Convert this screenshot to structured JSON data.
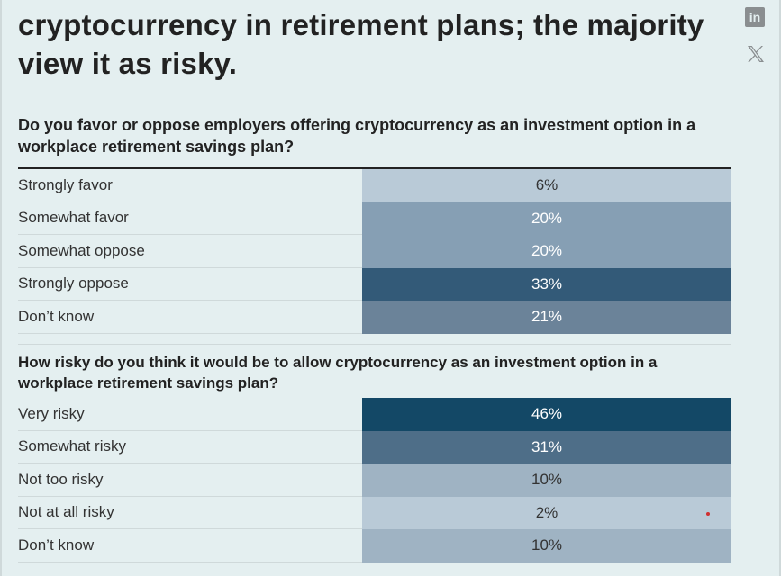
{
  "headline": "cryptocurrency in retirement plans; the majority view it as risky.",
  "share": {
    "linkedin_icon": "linkedin-icon",
    "x_icon": "x-icon"
  },
  "q1": {
    "question": "Do you favor or oppose employers offering cryptocurrency as an investment option in a workplace retirement savings plan?",
    "rows": [
      {
        "label": "Strongly favor",
        "value": "6%",
        "color": "#b9cad7"
      },
      {
        "label": "Somewhat favor",
        "value": "20%",
        "color": "#869fb4"
      },
      {
        "label": "Somewhat oppose",
        "value": "20%",
        "color": "#869fb4"
      },
      {
        "label": "Strongly oppose",
        "value": "33%",
        "color": "#335a78"
      },
      {
        "label": "Don’t know",
        "value": "21%",
        "color": "#6b8399"
      }
    ]
  },
  "q2": {
    "question": "How risky do you think it would be to allow cryptocurrency as an investment option in a workplace retirement savings plan?",
    "rows": [
      {
        "label": "Very risky",
        "value": "46%",
        "color": "#134866"
      },
      {
        "label": "Somewhat risky",
        "value": "31%",
        "color": "#4e6e88"
      },
      {
        "label": "Not too risky",
        "value": "10%",
        "color": "#9fb3c3"
      },
      {
        "label": "Not at all risky",
        "value": "2%",
        "color": "#b9cad7"
      },
      {
        "label": "Don’t know",
        "value": "10%",
        "color": "#9fb3c3"
      }
    ]
  }
}
